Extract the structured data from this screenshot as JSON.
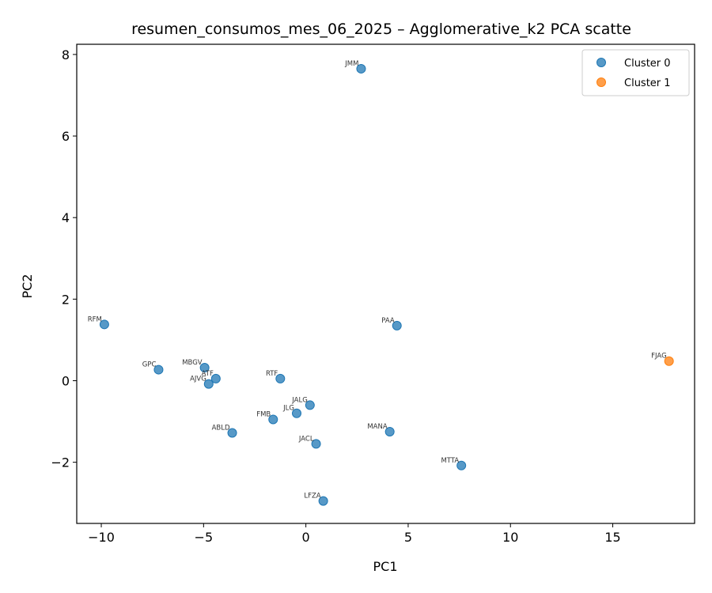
{
  "chart_data": {
    "type": "scatter",
    "title": "resumen_consumos_mes_06_2025 – Agglomerative_k2 PCA scatte",
    "xlabel": "PC1",
    "ylabel": "PC2",
    "xlim": [
      -11.2,
      19.0
    ],
    "ylim": [
      -3.5,
      8.25
    ],
    "xticks": [
      -10,
      -5,
      0,
      5,
      10,
      15
    ],
    "yticks": [
      -2,
      0,
      2,
      4,
      6,
      8
    ],
    "xtick_labels": [
      "−10",
      "−5",
      "0",
      "5",
      "10",
      "15"
    ],
    "ytick_labels": [
      "−2",
      "0",
      "2",
      "4",
      "6",
      "8"
    ],
    "grid": false,
    "legend_position": "top-right",
    "series": [
      {
        "name": "Cluster 0",
        "color": "#1f77b4",
        "points": [
          {
            "label": "JMM",
            "x": 2.7,
            "y": 7.65
          },
          {
            "label": "RFM",
            "x": -9.85,
            "y": 1.38
          },
          {
            "label": "PAA",
            "x": 4.45,
            "y": 1.35
          },
          {
            "label": "GPC",
            "x": -7.2,
            "y": 0.27
          },
          {
            "label": "MBGV",
            "x": -4.95,
            "y": 0.32
          },
          {
            "label": "ATF",
            "x": -4.4,
            "y": 0.05
          },
          {
            "label": "AJVG",
            "x": -4.75,
            "y": -0.08
          },
          {
            "label": "RTF",
            "x": -1.25,
            "y": 0.05
          },
          {
            "label": "JALG",
            "x": 0.2,
            "y": -0.6
          },
          {
            "label": "JLG",
            "x": -0.45,
            "y": -0.8
          },
          {
            "label": "FMB",
            "x": -1.6,
            "y": -0.95
          },
          {
            "label": "ABLD",
            "x": -3.6,
            "y": -1.28
          },
          {
            "label": "JACL",
            "x": 0.5,
            "y": -1.55
          },
          {
            "label": "MANA",
            "x": 4.1,
            "y": -1.25
          },
          {
            "label": "MTTA",
            "x": 7.6,
            "y": -2.08
          },
          {
            "label": "LFZA",
            "x": 0.85,
            "y": -2.95
          }
        ]
      },
      {
        "name": "Cluster 1",
        "color": "#ff7f0e",
        "points": [
          {
            "label": "FJAG",
            "x": 17.75,
            "y": 0.48
          }
        ]
      }
    ]
  }
}
